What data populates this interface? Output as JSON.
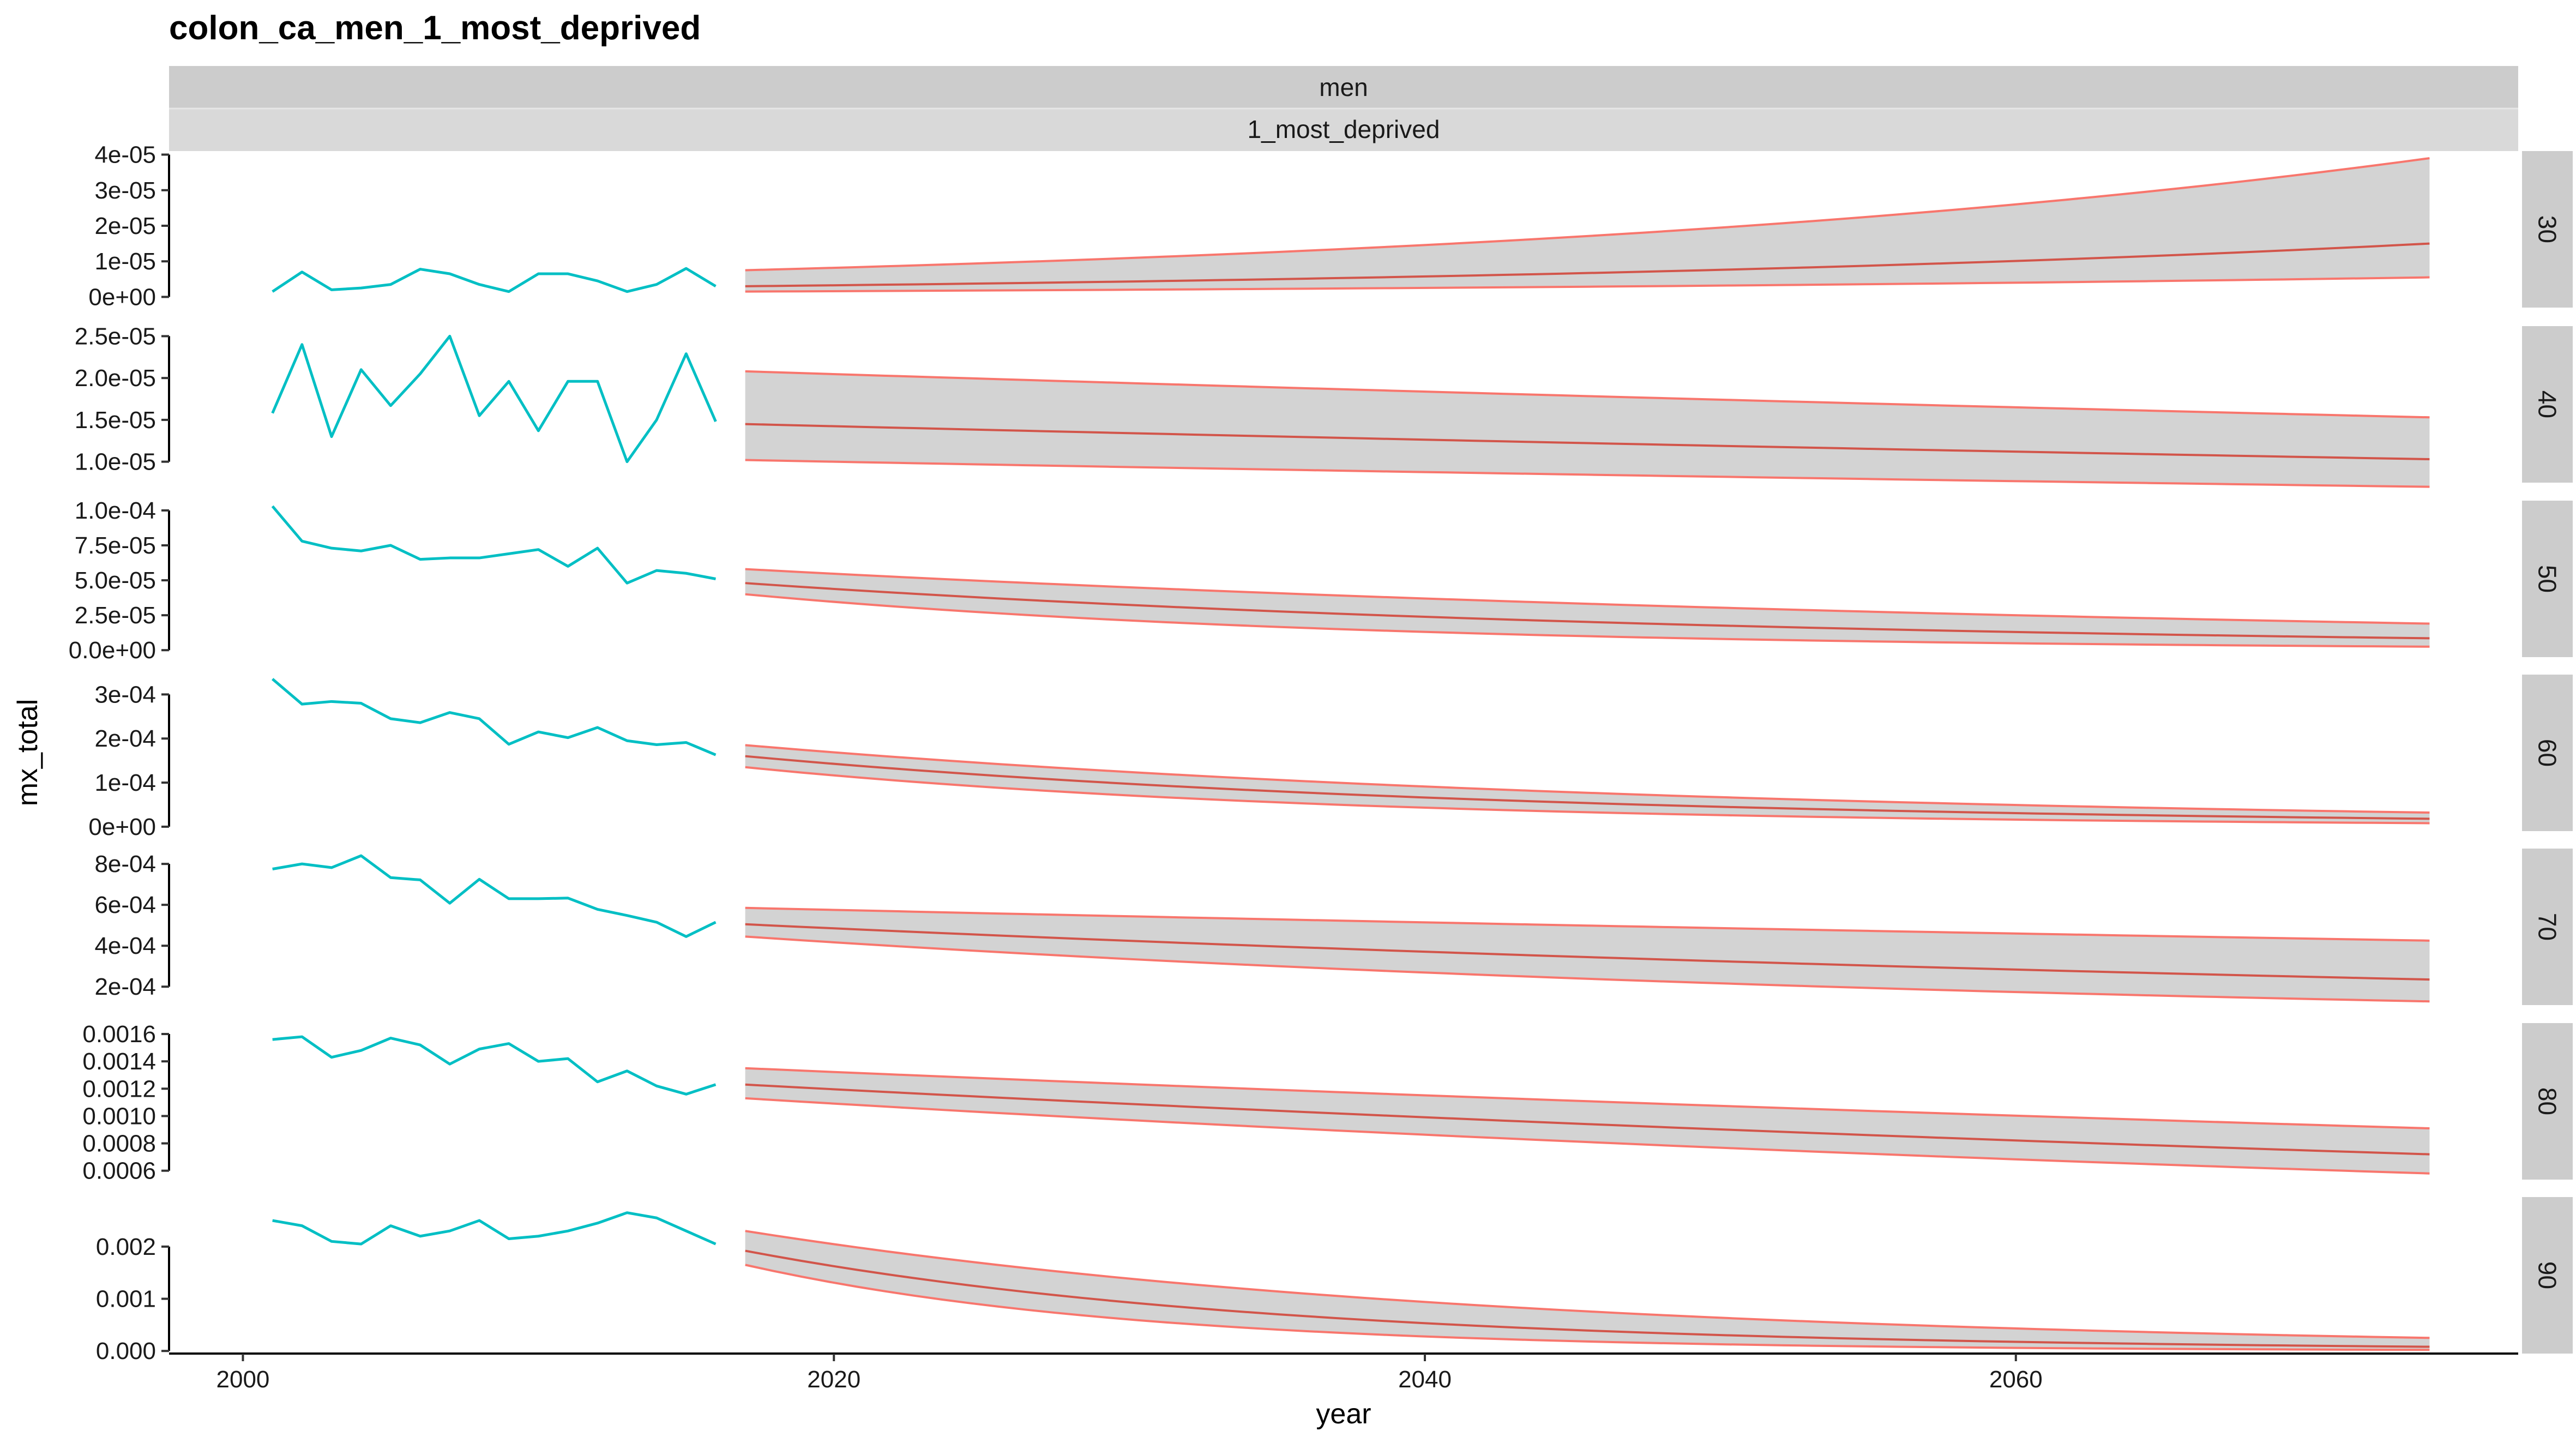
{
  "chart_data": {
    "type": "line",
    "title": "colon_ca_men_1_most_deprived",
    "xlabel": "year",
    "ylabel": "mx_total",
    "facet_strips": [
      "men",
      "1_most_deprived"
    ],
    "xlim": [
      1997.5,
      2077
    ],
    "x_ticks": [
      2000,
      2020,
      2040,
      2060
    ],
    "x_tick_labels": [
      "2000",
      "2020",
      "2040",
      "2060"
    ],
    "grid": false,
    "legend": "none",
    "colors": {
      "observed": "#00BFC4",
      "forecast": "#F8766D",
      "forecast_mean": "#D2554A",
      "ribbon": "#D3D3D3",
      "strip_bg": "#CCCCCC",
      "strip_bg_alt": "#D9D9D9"
    },
    "forecast_years": [
      2017,
      2074
    ],
    "panels": [
      {
        "age": "30",
        "ylim": [
          -3e-06,
          4.1e-05
        ],
        "y_ticks": [
          0,
          1e-05,
          2e-05,
          3e-05,
          4e-05
        ],
        "y_tick_labels": [
          "0e+00",
          "1e-05",
          "2e-05",
          "3e-05",
          "4e-05"
        ],
        "observed_x": [
          2001,
          2002,
          2003,
          2004,
          2005,
          2006,
          2007,
          2008,
          2009,
          2010,
          2011,
          2012,
          2013,
          2014,
          2015,
          2016
        ],
        "observed_y": [
          1.5e-06,
          7e-06,
          2e-06,
          2.5e-06,
          3.5e-06,
          7.8e-06,
          6.5e-06,
          3.5e-06,
          1.5e-06,
          6.5e-06,
          6.5e-06,
          4.5e-06,
          1.5e-06,
          3.5e-06,
          8e-06,
          3e-06
        ],
        "forecast": {
          "shape": "exp",
          "mean": [
            3e-06,
            1.5e-05
          ],
          "lower": [
            1.5e-06,
            5.5e-06
          ],
          "upper": [
            7.5e-06,
            3.9e-05
          ]
        }
      },
      {
        "age": "40",
        "ylim": [
          7.5e-06,
          2.62e-05
        ],
        "y_ticks": [
          1e-05,
          1.5e-05,
          2e-05,
          2.5e-05
        ],
        "y_tick_labels": [
          "1.0e-05",
          "1.5e-05",
          "2.0e-05",
          "2.5e-05"
        ],
        "observed_x": [
          2001,
          2002,
          2003,
          2004,
          2005,
          2006,
          2007,
          2008,
          2009,
          2010,
          2011,
          2012,
          2013,
          2014,
          2015,
          2016
        ],
        "observed_y": [
          1.58e-05,
          2.4e-05,
          1.3e-05,
          2.1e-05,
          1.67e-05,
          2.05e-05,
          2.5e-05,
          1.55e-05,
          1.96e-05,
          1.37e-05,
          1.96e-05,
          1.96e-05,
          1e-05,
          1.5e-05,
          2.29e-05,
          1.48e-05
        ],
        "forecast": {
          "shape": "exp",
          "mean": [
            1.45e-05,
            1.03e-05
          ],
          "lower": [
            1.02e-05,
            7e-06
          ],
          "upper": [
            2.08e-05,
            1.53e-05
          ]
        }
      },
      {
        "age": "50",
        "ylim": [
          -5e-06,
          0.000107
        ],
        "y_ticks": [
          0,
          2.5e-05,
          5e-05,
          7.5e-05,
          0.0001
        ],
        "y_tick_labels": [
          "0.0e+00",
          "2.5e-05",
          "5.0e-05",
          "7.5e-05",
          "1.0e-04"
        ],
        "observed_x": [
          2001,
          2002,
          2003,
          2004,
          2005,
          2006,
          2007,
          2008,
          2009,
          2010,
          2011,
          2012,
          2013,
          2014,
          2015,
          2016
        ],
        "observed_y": [
          0.000103,
          7.8e-05,
          7.3e-05,
          7.1e-05,
          7.5e-05,
          6.5e-05,
          6.6e-05,
          6.6e-05,
          6.9e-05,
          7.2e-05,
          6e-05,
          7.3e-05,
          4.8e-05,
          5.7e-05,
          5.5e-05,
          5.1e-05
        ],
        "forecast": {
          "shape": "exp",
          "mean": [
            4.8e-05,
            8.5e-06
          ],
          "lower": [
            4e-05,
            2.5e-06
          ],
          "upper": [
            5.8e-05,
            1.9e-05
          ]
        }
      },
      {
        "age": "60",
        "ylim": [
          -1e-05,
          0.000345
        ],
        "y_ticks": [
          0,
          0.0001,
          0.0002,
          0.0003
        ],
        "y_tick_labels": [
          "0e+00",
          "1e-04",
          "2e-04",
          "3e-04"
        ],
        "observed_x": [
          2001,
          2002,
          2003,
          2004,
          2005,
          2006,
          2007,
          2008,
          2009,
          2010,
          2011,
          2012,
          2013,
          2014,
          2015,
          2016
        ],
        "observed_y": [
          0.000335,
          0.000278,
          0.000284,
          0.00028,
          0.000245,
          0.000236,
          0.000259,
          0.000245,
          0.000187,
          0.000215,
          0.000202,
          0.000225,
          0.000195,
          0.000186,
          0.000191,
          0.000163
        ],
        "forecast": {
          "shape": "exp",
          "mean": [
            0.00016,
            1.8e-05
          ],
          "lower": [
            0.000135,
            8e-06
          ],
          "upper": [
            0.000185,
            3.2e-05
          ]
        }
      },
      {
        "age": "70",
        "ylim": [
          0.00011,
          0.000875
        ],
        "y_ticks": [
          0.0002,
          0.0004,
          0.0006,
          0.0008
        ],
        "y_tick_labels": [
          "2e-04",
          "4e-04",
          "6e-04",
          "8e-04"
        ],
        "observed_x": [
          2001,
          2002,
          2003,
          2004,
          2005,
          2006,
          2007,
          2008,
          2009,
          2010,
          2011,
          2012,
          2013,
          2014,
          2015,
          2016
        ],
        "observed_y": [
          0.000775,
          0.0008,
          0.000782,
          0.00084,
          0.000733,
          0.000722,
          0.000608,
          0.000725,
          0.00063,
          0.00063,
          0.000633,
          0.000578,
          0.000548,
          0.000515,
          0.000445,
          0.000515
        ],
        "forecast": {
          "shape": "exp",
          "mean": [
            0.000505,
            0.000235
          ],
          "lower": [
            0.000445,
            0.000128
          ],
          "upper": [
            0.000585,
            0.000425
          ]
        }
      },
      {
        "age": "80",
        "ylim": [
          0.000535,
          0.00168
        ],
        "y_ticks": [
          0.0006,
          0.0008,
          0.001,
          0.0012,
          0.0014,
          0.0016
        ],
        "y_tick_labels": [
          "0.0006",
          "0.0008",
          "0.0010",
          "0.0012",
          "0.0014",
          "0.0016"
        ],
        "observed_x": [
          2001,
          2002,
          2003,
          2004,
          2005,
          2006,
          2007,
          2008,
          2009,
          2010,
          2011,
          2012,
          2013,
          2014,
          2015,
          2016
        ],
        "observed_y": [
          0.00156,
          0.00158,
          0.00143,
          0.00148,
          0.00157,
          0.00152,
          0.00138,
          0.00149,
          0.00153,
          0.0014,
          0.00142,
          0.00125,
          0.00133,
          0.00122,
          0.00116,
          0.00123
        ],
        "forecast": {
          "shape": "exp",
          "mean": [
            0.00123,
            0.00072
          ],
          "lower": [
            0.00113,
            0.00058
          ],
          "upper": [
            0.00135,
            0.00091
          ]
        }
      },
      {
        "age": "90",
        "ylim": [
          -5e-05,
          0.00295
        ],
        "y_ticks": [
          0,
          0.001,
          0.002
        ],
        "y_tick_labels": [
          "0.000",
          "0.001",
          "0.002"
        ],
        "observed_x": [
          2001,
          2002,
          2003,
          2004,
          2005,
          2006,
          2007,
          2008,
          2009,
          2010,
          2011,
          2012,
          2013,
          2014,
          2015,
          2016
        ],
        "observed_y": [
          0.0025,
          0.0024,
          0.0021,
          0.00205,
          0.0024,
          0.0022,
          0.0023,
          0.0025,
          0.00215,
          0.0022,
          0.0023,
          0.00245,
          0.00265,
          0.00255,
          0.0023,
          0.00205
        ],
        "forecast": {
          "shape": "exp",
          "mean": [
            0.00192,
            8e-05
          ],
          "lower": [
            0.00165,
            2e-05
          ],
          "upper": [
            0.0023,
            0.00025
          ]
        }
      }
    ]
  }
}
